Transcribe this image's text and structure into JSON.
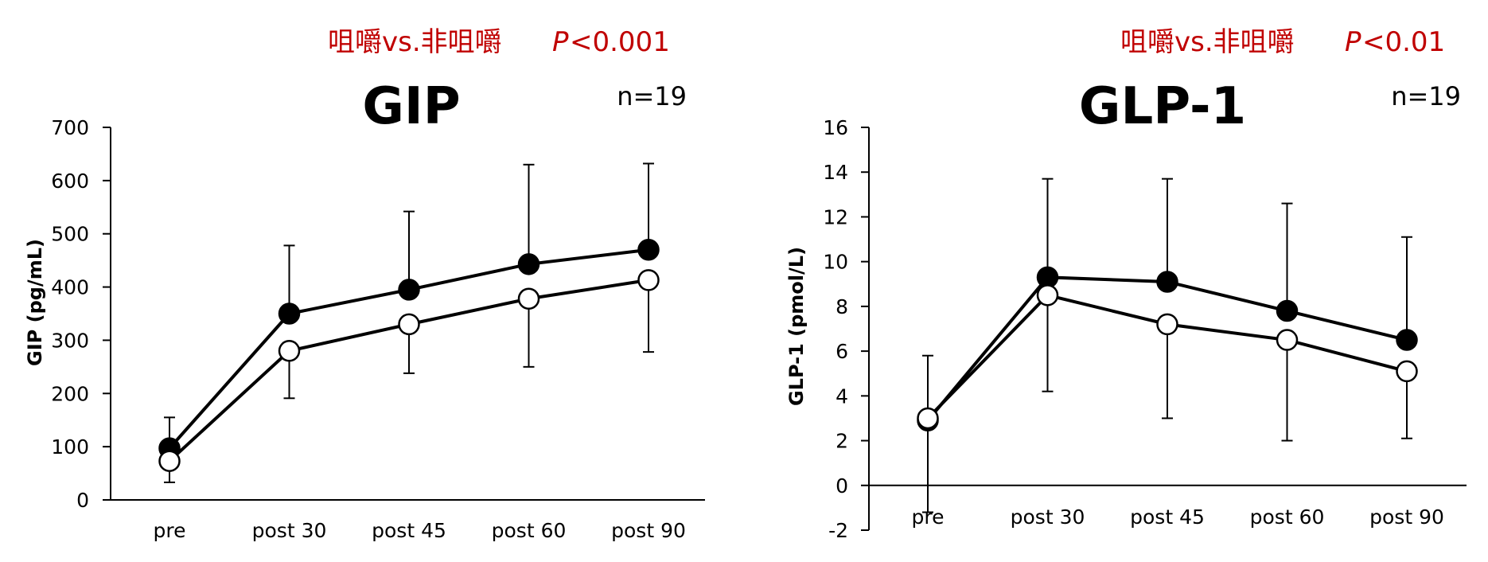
{
  "chart_data": [
    {
      "type": "line",
      "title": "GIP",
      "sample_size": "n=19",
      "significance": {
        "comparison": "咀嚼vs.非咀嚼",
        "p_label": "P",
        "p_value": "<0.001"
      },
      "xlabel": "",
      "ylabel": "GIP (pg/mL)",
      "categories": [
        "pre",
        "post 30",
        "post 45",
        "post 60",
        "post 90"
      ],
      "ylim": [
        0,
        700
      ],
      "yticks": [
        0,
        100,
        200,
        300,
        400,
        500,
        600,
        700
      ],
      "series": [
        {
          "marker": "filled",
          "color": "#000000",
          "values": [
            97,
            350,
            395,
            443,
            470
          ],
          "error_upper": [
            155,
            478,
            542,
            630,
            632
          ]
        },
        {
          "marker": "open",
          "color": "#ffffff",
          "values": [
            73,
            280,
            330,
            378,
            413
          ],
          "error_lower": [
            33,
            191,
            238,
            250,
            278
          ]
        }
      ]
    },
    {
      "type": "line",
      "title": "GLP-1",
      "sample_size": "n=19",
      "significance": {
        "comparison": "咀嚼vs.非咀嚼",
        "p_label": "P",
        "p_value": "<0.01"
      },
      "xlabel": "",
      "ylabel": "GLP-1 (pmol/L)",
      "categories": [
        "pre",
        "post 30",
        "post 45",
        "post 60",
        "post 90"
      ],
      "ylim": [
        -2,
        16
      ],
      "yticks": [
        -2,
        0,
        2,
        4,
        6,
        8,
        10,
        12,
        14,
        16
      ],
      "series": [
        {
          "marker": "filled",
          "color": "#000000",
          "values": [
            2.9,
            9.3,
            9.1,
            7.8,
            6.5
          ],
          "error_upper": [
            5.8,
            13.7,
            13.7,
            12.6,
            11.1
          ]
        },
        {
          "marker": "open",
          "color": "#ffffff",
          "values": [
            3.0,
            8.5,
            7.2,
            6.5,
            5.1
          ],
          "error_lower": [
            -1.2,
            4.2,
            3.0,
            2.0,
            2.1
          ]
        }
      ]
    }
  ]
}
